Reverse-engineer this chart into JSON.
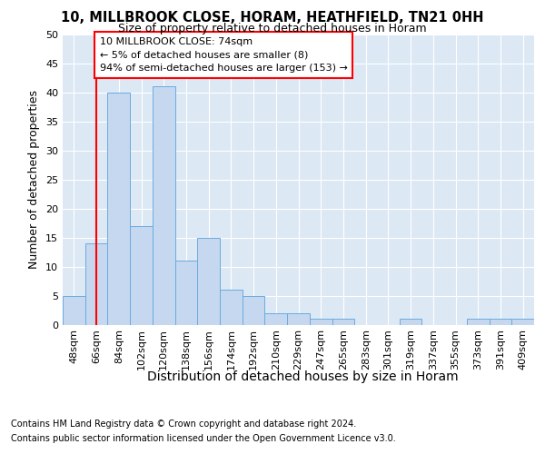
{
  "title1": "10, MILLBROOK CLOSE, HORAM, HEATHFIELD, TN21 0HH",
  "title2": "Size of property relative to detached houses in Horam",
  "xlabel": "Distribution of detached houses by size in Horam",
  "ylabel": "Number of detached properties",
  "categories": [
    "48sqm",
    "66sqm",
    "84sqm",
    "102sqm",
    "120sqm",
    "138sqm",
    "156sqm",
    "174sqm",
    "192sqm",
    "210sqm",
    "229sqm",
    "247sqm",
    "265sqm",
    "283sqm",
    "301sqm",
    "319sqm",
    "337sqm",
    "355sqm",
    "373sqm",
    "391sqm",
    "409sqm"
  ],
  "values": [
    5,
    14,
    40,
    17,
    41,
    11,
    15,
    6,
    5,
    2,
    2,
    1,
    1,
    0,
    0,
    1,
    0,
    0,
    1,
    1,
    1
  ],
  "bar_color": "#c5d8ef",
  "bar_edge_color": "#6aabe0",
  "annotation_lines": [
    "10 MILLBROOK CLOSE: 74sqm",
    "← 5% of detached houses are smaller (8)",
    "94% of semi-detached houses are larger (153) →"
  ],
  "red_line_x": 1.5,
  "ylim": [
    0,
    50
  ],
  "yticks": [
    0,
    5,
    10,
    15,
    20,
    25,
    30,
    35,
    40,
    45,
    50
  ],
  "plot_bg_color": "#dde8f5",
  "grid_color": "white",
  "fig_bg_color": "white",
  "title1_fontsize": 10.5,
  "title2_fontsize": 9,
  "xlabel_fontsize": 10,
  "ylabel_fontsize": 9,
  "tick_fontsize": 8,
  "annotation_fontsize": 8,
  "footnote_fontsize": 7,
  "footnote1": "Contains HM Land Registry data © Crown copyright and database right 2024.",
  "footnote2": "Contains public sector information licensed under the Open Government Licence v3.0."
}
